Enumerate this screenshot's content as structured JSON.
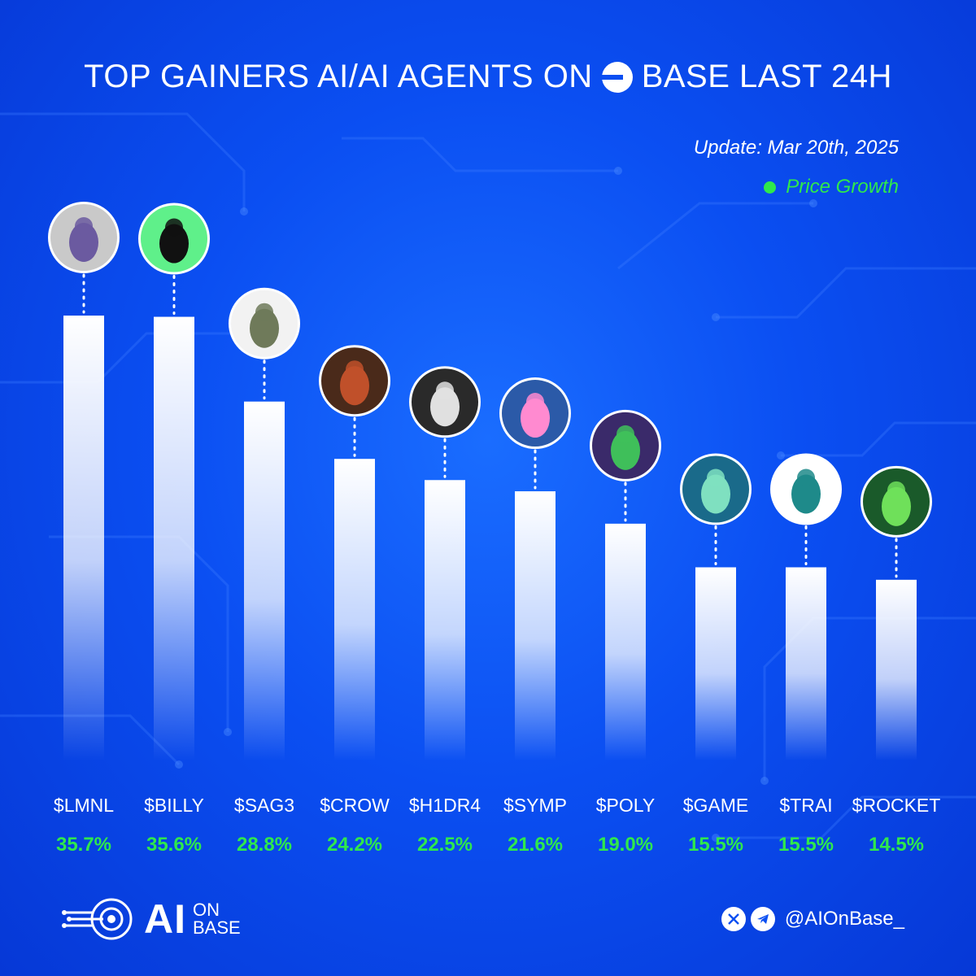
{
  "header": {
    "title_part1": "TOP GAINERS AI/AI AGENTS ON",
    "title_part2": "BASE LAST 24H",
    "update": "Update: Mar 20th, 2025",
    "legend_label": "Price Growth"
  },
  "colors": {
    "background": "#0b4ff2",
    "accent_green": "#2fe84c",
    "bar_top": "#ffffff"
  },
  "chart_data": {
    "type": "bar",
    "categories": [
      "$LMNL",
      "$BILLY",
      "$SAG3",
      "$CROW",
      "$H1DR4",
      "$SYMP",
      "$POLY",
      "$GAME",
      "$TRAI",
      "$ROCKET"
    ],
    "series": [
      {
        "name": "Price Growth",
        "values": [
          35.7,
          35.6,
          28.8,
          24.2,
          22.5,
          21.6,
          19.0,
          15.5,
          15.5,
          14.5
        ],
        "labels": [
          "35.7%",
          "35.6%",
          "28.8%",
          "24.2%",
          "22.5%",
          "21.6%",
          "19.0%",
          "15.5%",
          "15.5%",
          "14.5%"
        ]
      }
    ],
    "unit": "%",
    "legend": "top-right",
    "grid": false
  },
  "avatars": [
    {
      "name": "mask-avatar-icon"
    },
    {
      "name": "headset-silhouette-avatar-icon"
    },
    {
      "name": "hooded-frog-avatar-icon"
    },
    {
      "name": "crow-avatar-icon"
    },
    {
      "name": "dragon-avatar-icon"
    },
    {
      "name": "blue-frog-avatar-icon"
    },
    {
      "name": "wizard-frog-avatar-icon"
    },
    {
      "name": "anime-girl-avatar-icon"
    },
    {
      "name": "trai-logo-avatar-icon"
    },
    {
      "name": "coder-frog-avatar-icon"
    }
  ],
  "footer": {
    "logo_ai": "AI",
    "logo_on": "ON",
    "logo_base": "BASE",
    "handle": "@AIOnBase_",
    "icons": [
      "x-icon",
      "telegram-icon"
    ]
  }
}
